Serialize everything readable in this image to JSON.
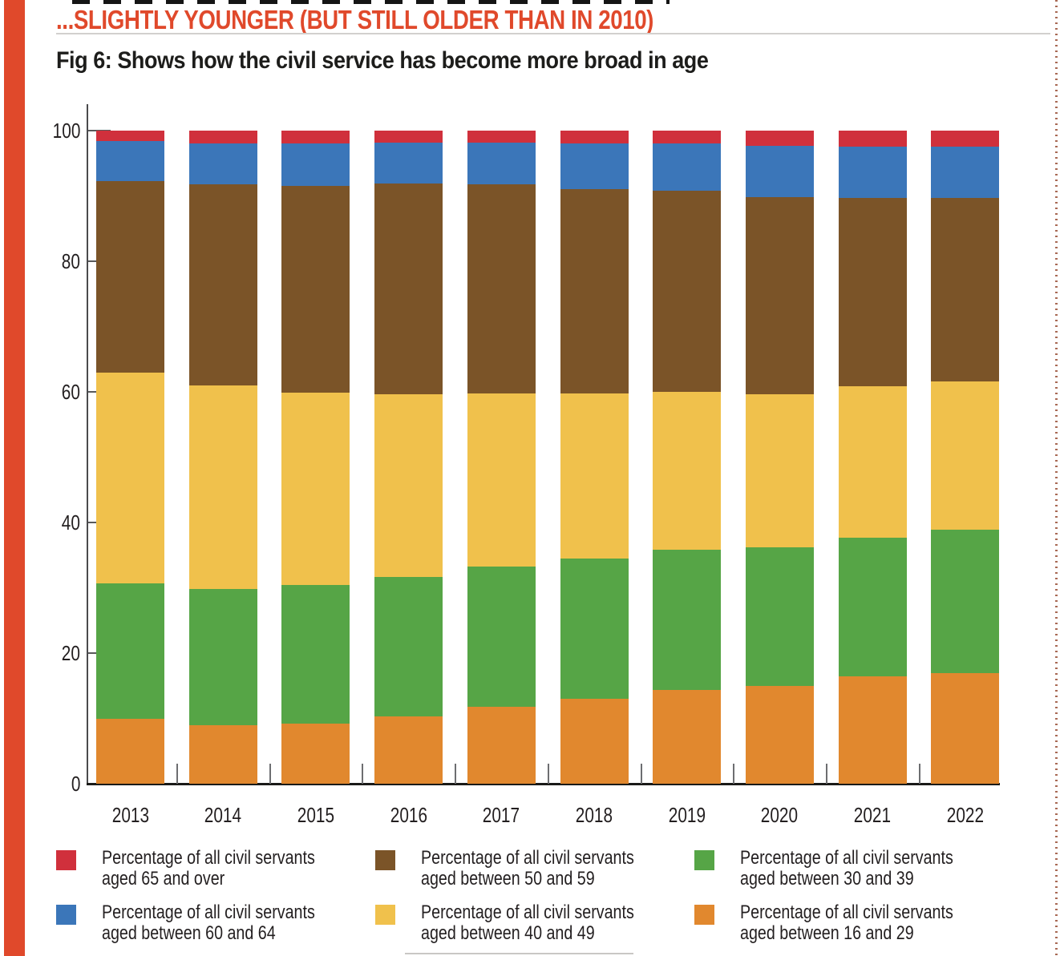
{
  "page": {
    "headline": "...SLIGHTLY YOUNGER (BUT STILL OLDER THAN IN 2010)",
    "fig_caption": "Fig 6: Shows how the civil service has become more broad in age"
  },
  "colors": {
    "accent_band": "#E0492B",
    "red": "#D0303C",
    "blue": "#3B76B9",
    "brown": "#7B5428",
    "yellow": "#F0C14C",
    "green": "#56A546",
    "orange": "#E1882E",
    "axis_text": "#231F20"
  },
  "chart_data": {
    "type": "bar",
    "variant": "stacked-100-percent",
    "title": "Fig 6: Shows how the civil service has become more broad in age",
    "xlabel": "",
    "ylabel": "",
    "ylim": [
      0,
      100
    ],
    "yticks": [
      0,
      20,
      40,
      60,
      80,
      100
    ],
    "grid": false,
    "legend_position": "bottom",
    "categories": [
      "2013",
      "2014",
      "2015",
      "2016",
      "2017",
      "2018",
      "2019",
      "2020",
      "2021",
      "2022"
    ],
    "series": [
      {
        "name": "Percentage of all civil servants aged between 16 and 29",
        "color_key": "orange",
        "values": [
          10.0,
          9.0,
          9.2,
          10.3,
          11.8,
          13.0,
          14.3,
          15.0,
          16.4,
          16.9
        ]
      },
      {
        "name": "Percentage of all civil servants aged between 30 and 39",
        "color_key": "green",
        "values": [
          20.7,
          20.8,
          21.2,
          21.3,
          21.5,
          21.5,
          21.5,
          21.2,
          21.3,
          22.0
        ]
      },
      {
        "name": "Percentage of all civil servants aged between 40 and 49",
        "color_key": "yellow",
        "values": [
          32.2,
          31.2,
          29.5,
          28.0,
          26.4,
          25.2,
          24.2,
          23.4,
          23.2,
          22.7
        ]
      },
      {
        "name": "Percentage of all civil servants aged between 50 and 59",
        "color_key": "brown",
        "values": [
          29.4,
          30.8,
          31.7,
          32.3,
          32.1,
          31.4,
          30.8,
          30.2,
          28.8,
          28.1
        ]
      },
      {
        "name": "Percentage of all civil servants aged between 60 and 64",
        "color_key": "blue",
        "values": [
          6.1,
          6.3,
          6.4,
          6.3,
          6.4,
          6.9,
          7.2,
          7.9,
          7.9,
          7.9
        ]
      },
      {
        "name": "Percentage of all civil servants aged 65 and over",
        "color_key": "red",
        "values": [
          1.6,
          1.9,
          2.0,
          1.8,
          1.8,
          2.0,
          2.0,
          2.3,
          2.4,
          2.4
        ]
      }
    ]
  },
  "legend": {
    "items": [
      {
        "color_key": "red",
        "line1": "Percentage of all civil servants",
        "line2": "aged 65 and over"
      },
      {
        "color_key": "brown",
        "line1": "Percentage of all civil servants",
        "line2": "aged between 50 and 59"
      },
      {
        "color_key": "green",
        "line1": "Percentage of all civil servants",
        "line2": "aged between 30 and 39"
      },
      {
        "color_key": "blue",
        "line1": "Percentage of all civil servants",
        "line2": "aged between 60 and 64"
      },
      {
        "color_key": "yellow",
        "line1": "Percentage of all civil servants",
        "line2": "aged between 40 and 49"
      },
      {
        "color_key": "orange",
        "line1": "Percentage of all civil servants",
        "line2": "aged between 16 and 29"
      }
    ]
  }
}
